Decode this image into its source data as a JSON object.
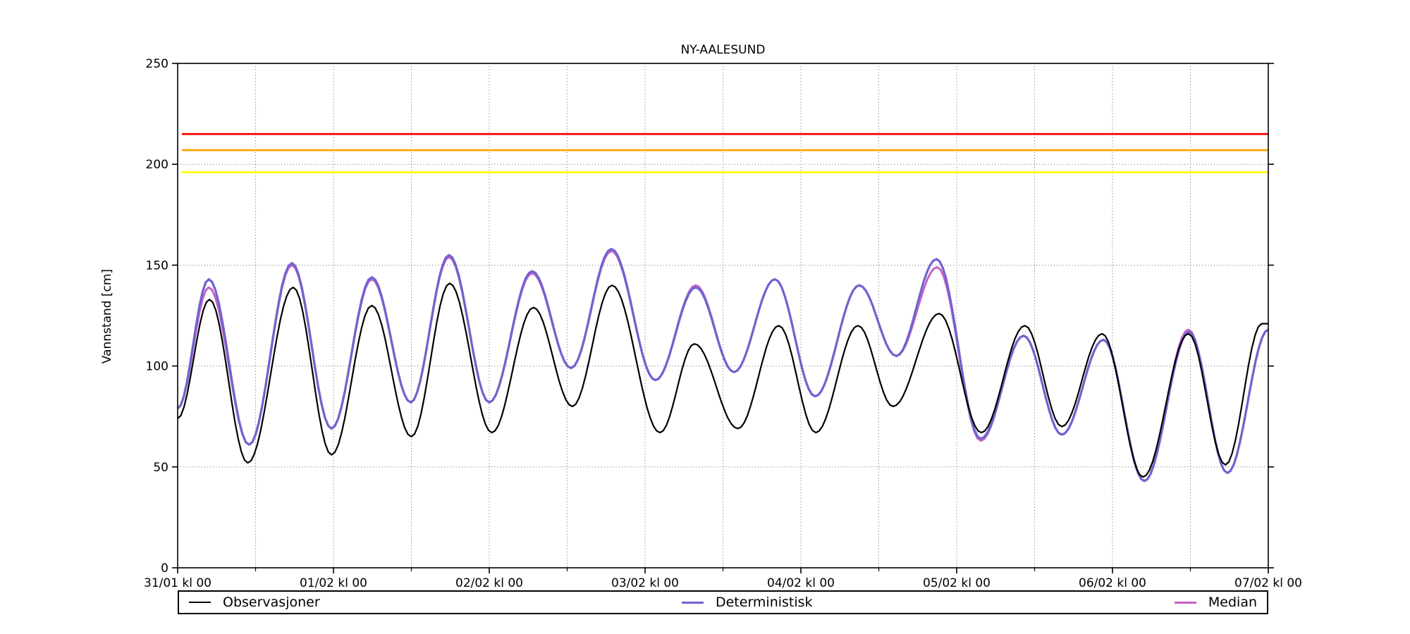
{
  "chart_data": {
    "type": "line",
    "title": "NY-AALESUND",
    "xlabel": "",
    "ylabel": "Vannstand [cm]",
    "ylim": [
      0,
      250
    ],
    "y_ticks": [
      0,
      50,
      100,
      150,
      200,
      250
    ],
    "x_range_hours": [
      0,
      168
    ],
    "x_unit_note": "hours after 31/01 kl 00",
    "x_ticks": [
      {
        "hours": 0,
        "label": "31/01 kl 00"
      },
      {
        "hours": 24,
        "label": "01/02 kl 00"
      },
      {
        "hours": 48,
        "label": "02/02 kl 00"
      },
      {
        "hours": 72,
        "label": "03/02 kl 00"
      },
      {
        "hours": 96,
        "label": "04/02 kl 00"
      },
      {
        "hours": 120,
        "label": "05/02 kl 00"
      },
      {
        "hours": 144,
        "label": "06/02 kl 00"
      },
      {
        "hours": 168,
        "label": "07/02 kl 00"
      }
    ],
    "grid": "dotted lines every 50 cm and every 12 h",
    "legend_position": "bottom, full-width box",
    "reference_lines": [
      {
        "name": "warning-level-red",
        "value": 215,
        "color": "#ff0000"
      },
      {
        "name": "warning-level-orange",
        "value": 207,
        "color": "#ffa500"
      },
      {
        "name": "warning-level-yellow",
        "value": 196,
        "color": "#ffff00"
      }
    ],
    "series": [
      {
        "name": "Observasjoner",
        "color": "#000000",
        "width": 2.2,
        "points": [
          [
            0,
            74
          ],
          [
            4.9,
            133
          ],
          [
            10.8,
            52
          ],
          [
            17.8,
            139
          ],
          [
            23.7,
            56
          ],
          [
            29.9,
            130
          ],
          [
            36,
            65
          ],
          [
            41.9,
            141
          ],
          [
            48.4,
            67
          ],
          [
            54.8,
            129
          ],
          [
            60.8,
            80
          ],
          [
            66.9,
            140
          ],
          [
            74.3,
            67
          ],
          [
            79.6,
            111
          ],
          [
            86.3,
            69
          ],
          [
            92.6,
            120
          ],
          [
            98.3,
            67
          ],
          [
            104.8,
            120
          ],
          [
            110.2,
            80
          ],
          [
            117.3,
            126
          ],
          [
            123.8,
            67
          ],
          [
            130.5,
            120
          ],
          [
            136.2,
            70
          ],
          [
            142.4,
            116
          ],
          [
            148.7,
            45
          ],
          [
            155.7,
            116
          ],
          [
            161.4,
            51
          ],
          [
            167,
            121
          ],
          [
            168,
            121
          ]
        ]
      },
      {
        "name": "Deterministisk",
        "color": "#6f63cf",
        "width": 3.2,
        "points": [
          [
            0,
            79
          ],
          [
            4.8,
            143
          ],
          [
            11,
            61
          ],
          [
            17.6,
            151
          ],
          [
            23.7,
            69
          ],
          [
            29.9,
            144
          ],
          [
            35.9,
            82
          ],
          [
            41.8,
            155
          ],
          [
            48,
            82
          ],
          [
            54.6,
            147
          ],
          [
            60.6,
            99
          ],
          [
            66.8,
            158
          ],
          [
            73.6,
            93
          ],
          [
            79.8,
            139
          ],
          [
            85.7,
            97
          ],
          [
            92,
            143
          ],
          [
            98.2,
            85
          ],
          [
            105,
            140
          ],
          [
            110.7,
            105
          ],
          [
            116.9,
            153
          ],
          [
            123.7,
            64
          ],
          [
            130.3,
            115
          ],
          [
            136.2,
            66
          ],
          [
            142.6,
            113
          ],
          [
            148.9,
            43
          ],
          [
            155.8,
            117
          ],
          [
            161.7,
            47
          ],
          [
            168,
            118
          ]
        ]
      },
      {
        "name": "Median",
        "color": "#c762c7",
        "width": 3,
        "points": [
          [
            0,
            79
          ],
          [
            4.8,
            139
          ],
          [
            11,
            61
          ],
          [
            17.6,
            150
          ],
          [
            23.7,
            69
          ],
          [
            29.9,
            143
          ],
          [
            35.9,
            82
          ],
          [
            41.8,
            154
          ],
          [
            48,
            82
          ],
          [
            54.6,
            146
          ],
          [
            60.6,
            99
          ],
          [
            66.8,
            157
          ],
          [
            73.6,
            93
          ],
          [
            79.8,
            140
          ],
          [
            85.7,
            97
          ],
          [
            92,
            143
          ],
          [
            98.2,
            85
          ],
          [
            105,
            140
          ],
          [
            110.7,
            105
          ],
          [
            117,
            149
          ],
          [
            123.7,
            63
          ],
          [
            130.3,
            115
          ],
          [
            136.2,
            66
          ],
          [
            142.6,
            113
          ],
          [
            148.9,
            43
          ],
          [
            155.7,
            118
          ],
          [
            161.7,
            47
          ],
          [
            168,
            118
          ]
        ]
      }
    ]
  },
  "legend": {
    "items": [
      {
        "label": "Observasjoner",
        "color": "#000000",
        "line_width": 2
      },
      {
        "label": "Deterministisk",
        "color": "#6f63cf",
        "line_width": 3
      },
      {
        "label": "Median",
        "color": "#c762c7",
        "line_width": 3
      }
    ]
  }
}
